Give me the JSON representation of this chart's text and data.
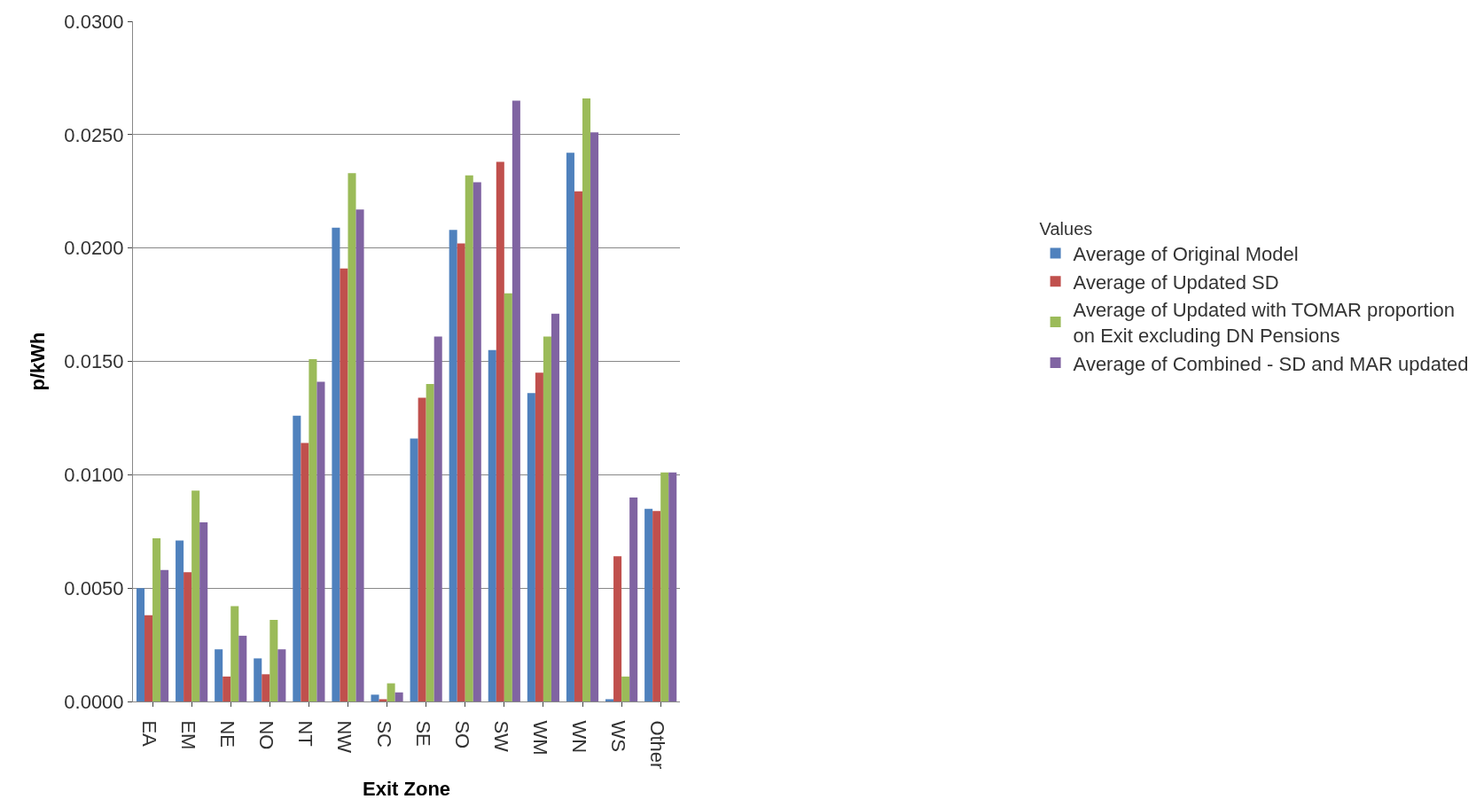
{
  "chart_data": {
    "type": "bar",
    "xlabel": "Exit Zone",
    "ylabel": "p/kWh",
    "legend_title": "Values",
    "categories": [
      "EA",
      "EM",
      "NE",
      "NO",
      "NT",
      "NW",
      "SC",
      "SE",
      "SO",
      "SW",
      "WM",
      "WN",
      "WS",
      "Other"
    ],
    "series": [
      {
        "name": "Average of Original Model",
        "color": "#4f81bd",
        "values": [
          0.005,
          0.0071,
          0.0023,
          0.0019,
          0.0126,
          0.0209,
          0.0003,
          0.0116,
          0.0208,
          0.0155,
          0.0136,
          0.0242,
          0.0001,
          0.0085
        ]
      },
      {
        "name": "Average of Updated SD",
        "color": "#c0504d",
        "values": [
          0.0038,
          0.0057,
          0.0011,
          0.0012,
          0.0114,
          0.0191,
          0.0001,
          0.0134,
          0.0202,
          0.0238,
          0.0145,
          0.0225,
          0.0064,
          0.0084
        ]
      },
      {
        "name": "Average of Updated with TOMAR proportion on Exit excluding DN Pensions",
        "color": "#9bbb59",
        "values": [
          0.0072,
          0.0093,
          0.0042,
          0.0036,
          0.0151,
          0.0233,
          0.0008,
          0.014,
          0.0232,
          0.018,
          0.0161,
          0.0266,
          0.0011,
          0.0101
        ]
      },
      {
        "name": "Average of Combined - SD and MAR updated",
        "color": "#8064a2",
        "values": [
          0.0058,
          0.0079,
          0.0029,
          0.0023,
          0.0141,
          0.0217,
          0.0004,
          0.0161,
          0.0229,
          0.0265,
          0.0171,
          0.0251,
          0.009,
          0.0101
        ]
      }
    ],
    "ylim": [
      0,
      0.03
    ],
    "yticks": [
      {
        "value": 0,
        "label": "0.0000"
      },
      {
        "value": 0.005,
        "label": "0.0050"
      },
      {
        "value": 0.01,
        "label": "0.0100"
      },
      {
        "value": 0.015,
        "label": "0.0150"
      },
      {
        "value": 0.02,
        "label": "0.0200"
      },
      {
        "value": 0.025,
        "label": "0.0250"
      },
      {
        "value": 0.03,
        "label": "0.0300"
      }
    ],
    "grid": "y",
    "legend": "right"
  }
}
